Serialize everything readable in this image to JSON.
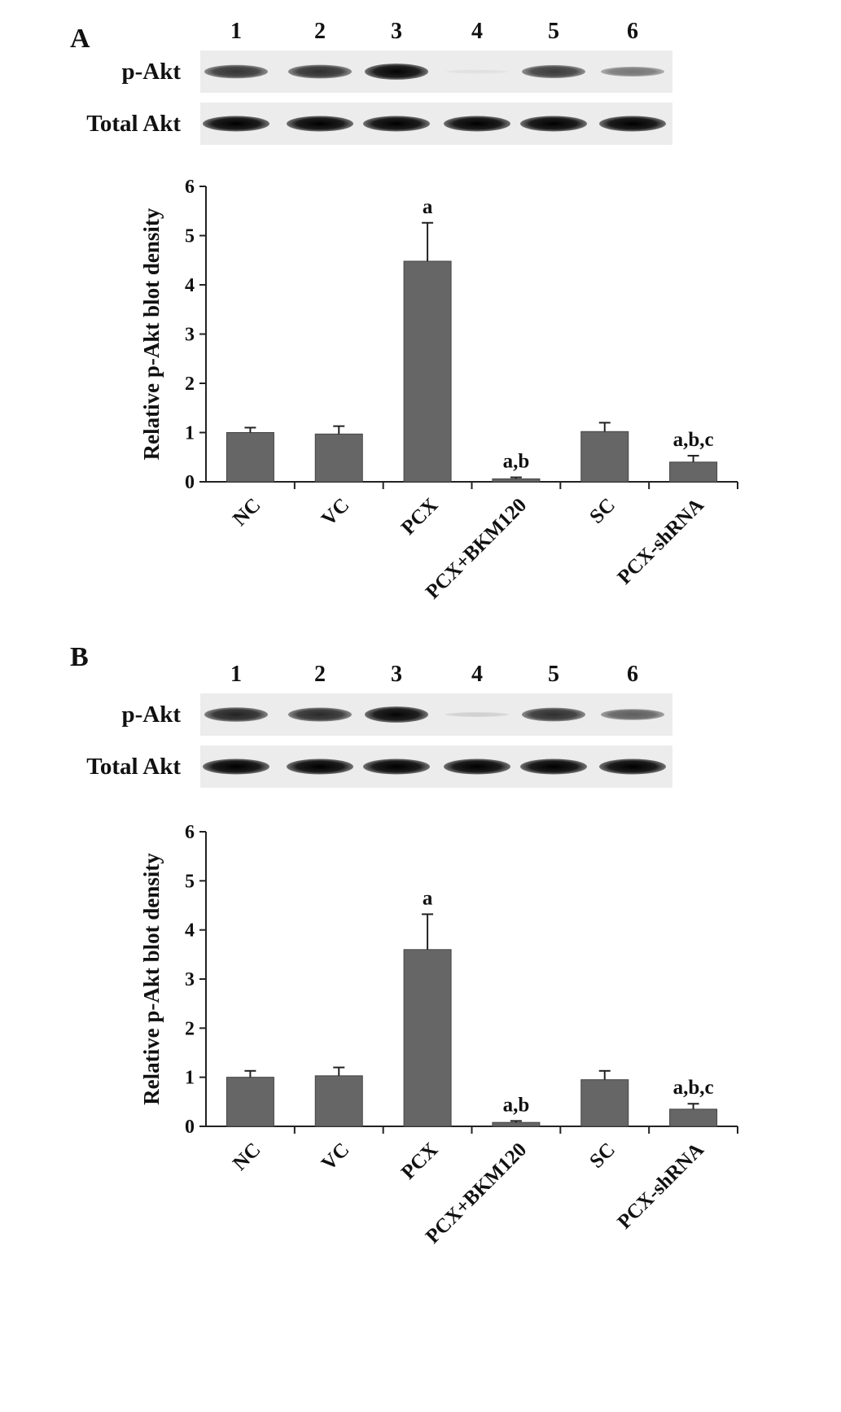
{
  "figure": {
    "panels": [
      {
        "letter": "A",
        "blot": {
          "lane_numbers": [
            "1",
            "2",
            "3",
            "4",
            "5",
            "6"
          ],
          "rows": [
            {
              "label": "p-Akt",
              "band_intensity": [
                0.78,
                0.8,
                0.98,
                0.05,
                0.75,
                0.5
              ]
            },
            {
              "label": "Total Akt",
              "band_intensity": [
                1.0,
                1.0,
                1.0,
                1.0,
                1.0,
                1.0
              ]
            }
          ]
        }
      },
      {
        "letter": "B",
        "blot": {
          "lane_numbers": [
            "1",
            "2",
            "3",
            "4",
            "5",
            "6"
          ],
          "rows": [
            {
              "label": "p-Akt",
              "band_intensity": [
                0.85,
                0.82,
                0.98,
                0.12,
                0.8,
                0.6
              ]
            },
            {
              "label": "Total Akt",
              "band_intensity": [
                1.0,
                1.0,
                1.0,
                1.0,
                1.0,
                1.0
              ]
            }
          ]
        }
      }
    ]
  },
  "chart_data": [
    {
      "type": "bar",
      "panel": "A",
      "title": "",
      "xlabel": "",
      "ylabel": "Relative p-Akt blot density",
      "ylim": [
        0,
        6
      ],
      "yticks": [
        "0",
        "1",
        "2",
        "3",
        "4",
        "5",
        "6"
      ],
      "categories": [
        "NC",
        "VC",
        "PCX",
        "PCX+BKM120",
        "SC",
        "PCX-shRNA"
      ],
      "values": [
        1.0,
        0.97,
        4.48,
        0.06,
        1.02,
        0.4
      ],
      "errors": [
        0.1,
        0.16,
        0.78,
        0.03,
        0.18,
        0.13
      ],
      "annotations": [
        "",
        "",
        "a",
        "a,b",
        "",
        "a,b,c"
      ],
      "bar_color": "#666666",
      "grid": false,
      "legend": "none"
    },
    {
      "type": "bar",
      "panel": "B",
      "title": "",
      "xlabel": "",
      "ylabel": "Relative p-Akt blot density",
      "ylim": [
        0,
        6
      ],
      "yticks": [
        "0",
        "1",
        "2",
        "3",
        "4",
        "5",
        "6"
      ],
      "categories": [
        "NC",
        "VC",
        "PCX",
        "PCX+BKM120",
        "SC",
        "PCX-shRNA"
      ],
      "values": [
        1.0,
        1.03,
        3.6,
        0.08,
        0.95,
        0.35
      ],
      "errors": [
        0.13,
        0.17,
        0.72,
        0.03,
        0.18,
        0.11
      ],
      "annotations": [
        "",
        "",
        "a",
        "a,b",
        "",
        "a,b,c"
      ],
      "bar_color": "#666666",
      "grid": false,
      "legend": "none"
    }
  ]
}
